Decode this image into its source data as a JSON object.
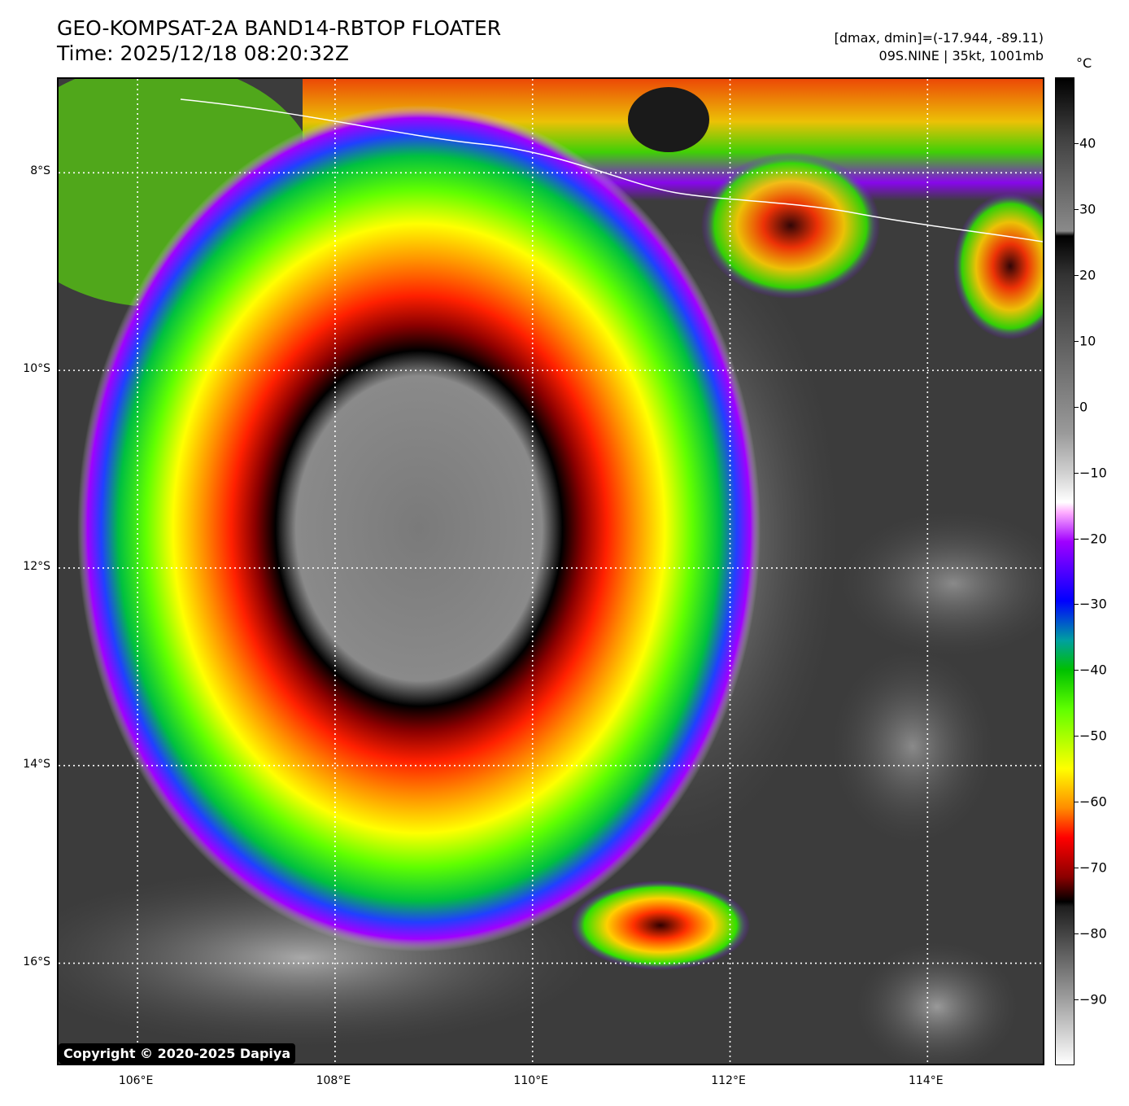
{
  "title": {
    "line1": "GEO-KOMPSAT-2A BAND14-RBTOP FLOATER",
    "line2": "Time: 2025/12/18 08:20:32Z"
  },
  "meta": {
    "dmax_dmin": "[dmax, dmin]=(-17.944, -89.11)",
    "storm": "09S.NINE | 35kt, 1001mb"
  },
  "map": {
    "lat_labels": [
      "8°S",
      "10°S",
      "12°S",
      "14°S",
      "16°S"
    ],
    "lon_labels": [
      "106°E",
      "108°E",
      "110°E",
      "112°E",
      "114°E"
    ],
    "lat_values": [
      -8,
      -10,
      -12,
      -14,
      -16
    ],
    "lon_values": [
      106,
      108,
      110,
      112,
      114
    ],
    "extent": {
      "lon_min": 105.2,
      "lon_max": 115.2,
      "lat_max": -7.05,
      "lat_min": -17.05
    },
    "storm_center": {
      "lon": 108.85,
      "lat": -11.6
    }
  },
  "colorbar": {
    "unit": "°C",
    "tick_labels": [
      "40",
      "30",
      "20",
      "10",
      "0",
      "−10",
      "−20",
      "−30",
      "−40",
      "−50",
      "−60",
      "−70",
      "−80",
      "−90"
    ],
    "tick_values": [
      40,
      30,
      20,
      10,
      0,
      -10,
      -20,
      -30,
      -40,
      -50,
      -60,
      -70,
      -80,
      -90
    ],
    "range": [
      -100,
      50
    ]
  },
  "copyright": "Copyright © 2020-2025 Dapiya"
}
